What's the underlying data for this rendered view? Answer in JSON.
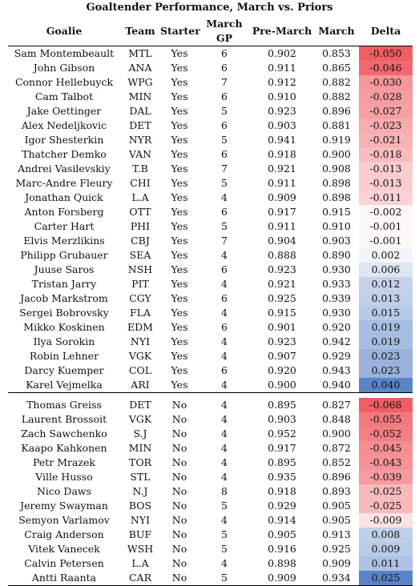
{
  "title": "Goaltender Performance, March vs. Priors",
  "headers": {
    "goalie": "Goalie",
    "team": "Team",
    "starter": "Starter",
    "march_gp": "March GP",
    "pre_march": "Pre-March",
    "march": "March",
    "delta": "Delta"
  },
  "starters": [
    {
      "goalie": "Sam Montembeault",
      "team": "MTL",
      "starter": "Yes",
      "gp": "6",
      "pre": "0.902",
      "march": "0.853",
      "delta": "-0.050",
      "d": -0.05
    },
    {
      "goalie": "John Gibson",
      "team": "ANA",
      "starter": "Yes",
      "gp": "6",
      "pre": "0.911",
      "march": "0.865",
      "delta": "-0.046",
      "d": -0.046
    },
    {
      "goalie": "Connor Hellebuyck",
      "team": "WPG",
      "starter": "Yes",
      "gp": "7",
      "pre": "0.912",
      "march": "0.882",
      "delta": "-0.030",
      "d": -0.03
    },
    {
      "goalie": "Cam Talbot",
      "team": "MIN",
      "starter": "Yes",
      "gp": "6",
      "pre": "0.910",
      "march": "0.882",
      "delta": "-0.028",
      "d": -0.028
    },
    {
      "goalie": "Jake Oettinger",
      "team": "DAL",
      "starter": "Yes",
      "gp": "5",
      "pre": "0.923",
      "march": "0.896",
      "delta": "-0.027",
      "d": -0.027
    },
    {
      "goalie": "Alex Nedeljkovic",
      "team": "DET",
      "starter": "Yes",
      "gp": "6",
      "pre": "0.903",
      "march": "0.881",
      "delta": "-0.023",
      "d": -0.023
    },
    {
      "goalie": "Igor Shesterkin",
      "team": "NYR",
      "starter": "Yes",
      "gp": "5",
      "pre": "0.941",
      "march": "0.919",
      "delta": "-0.021",
      "d": -0.021
    },
    {
      "goalie": "Thatcher Demko",
      "team": "VAN",
      "starter": "Yes",
      "gp": "6",
      "pre": "0.918",
      "march": "0.900",
      "delta": "-0.018",
      "d": -0.018
    },
    {
      "goalie": "Andrei Vasilevskiy",
      "team": "T.B",
      "starter": "Yes",
      "gp": "7",
      "pre": "0.921",
      "march": "0.908",
      "delta": "-0.013",
      "d": -0.013
    },
    {
      "goalie": "Marc-Andre Fleury",
      "team": "CHI",
      "starter": "Yes",
      "gp": "5",
      "pre": "0.911",
      "march": "0.898",
      "delta": "-0.013",
      "d": -0.013
    },
    {
      "goalie": "Jonathan Quick",
      "team": "L.A",
      "starter": "Yes",
      "gp": "4",
      "pre": "0.909",
      "march": "0.898",
      "delta": "-0.011",
      "d": -0.011
    },
    {
      "goalie": "Anton Forsberg",
      "team": "OTT",
      "starter": "Yes",
      "gp": "6",
      "pre": "0.917",
      "march": "0.915",
      "delta": "-0.002",
      "d": -0.002
    },
    {
      "goalie": "Carter Hart",
      "team": "PHI",
      "starter": "Yes",
      "gp": "5",
      "pre": "0.911",
      "march": "0.910",
      "delta": "-0.001",
      "d": -0.001
    },
    {
      "goalie": "Elvis Merzlikins",
      "team": "CBJ",
      "starter": "Yes",
      "gp": "7",
      "pre": "0.904",
      "march": "0.903",
      "delta": "-0.001",
      "d": -0.001
    },
    {
      "goalie": "Philipp Grubauer",
      "team": "SEA",
      "starter": "Yes",
      "gp": "4",
      "pre": "0.888",
      "march": "0.890",
      "delta": "0.002",
      "d": 0.002
    },
    {
      "goalie": "Juuse Saros",
      "team": "NSH",
      "starter": "Yes",
      "gp": "6",
      "pre": "0.923",
      "march": "0.930",
      "delta": "0.006",
      "d": 0.006
    },
    {
      "goalie": "Tristan Jarry",
      "team": "PIT",
      "starter": "Yes",
      "gp": "4",
      "pre": "0.921",
      "march": "0.933",
      "delta": "0.012",
      "d": 0.012
    },
    {
      "goalie": "Jacob Markstrom",
      "team": "CGY",
      "starter": "Yes",
      "gp": "6",
      "pre": "0.925",
      "march": "0.939",
      "delta": "0.013",
      "d": 0.013
    },
    {
      "goalie": "Sergei Bobrovsky",
      "team": "FLA",
      "starter": "Yes",
      "gp": "4",
      "pre": "0.915",
      "march": "0.930",
      "delta": "0.015",
      "d": 0.015
    },
    {
      "goalie": "Mikko Koskinen",
      "team": "EDM",
      "starter": "Yes",
      "gp": "6",
      "pre": "0.901",
      "march": "0.920",
      "delta": "0.019",
      "d": 0.019
    },
    {
      "goalie": "Ilya Sorokin",
      "team": "NYI",
      "starter": "Yes",
      "gp": "4",
      "pre": "0.923",
      "march": "0.942",
      "delta": "0.019",
      "d": 0.019
    },
    {
      "goalie": "Robin Lehner",
      "team": "VGK",
      "starter": "Yes",
      "gp": "4",
      "pre": "0.907",
      "march": "0.929",
      "delta": "0.023",
      "d": 0.023
    },
    {
      "goalie": "Darcy Kuemper",
      "team": "COL",
      "starter": "Yes",
      "gp": "6",
      "pre": "0.920",
      "march": "0.943",
      "delta": "0.023",
      "d": 0.023
    },
    {
      "goalie": "Karel Vejmelka",
      "team": "ARI",
      "starter": "Yes",
      "gp": "4",
      "pre": "0.900",
      "march": "0.940",
      "delta": "0.040",
      "d": 0.04
    }
  ],
  "backups": [
    {
      "goalie": "Thomas Greiss",
      "team": "DET",
      "starter": "No",
      "gp": "4",
      "pre": "0.895",
      "march": "0.827",
      "delta": "-0.068",
      "d": -0.068
    },
    {
      "goalie": "Laurent Brossoit",
      "team": "VGK",
      "starter": "No",
      "gp": "4",
      "pre": "0.903",
      "march": "0.848",
      "delta": "-0.055",
      "d": -0.055
    },
    {
      "goalie": "Zach Sawchenko",
      "team": "S.J",
      "starter": "No",
      "gp": "4",
      "pre": "0.952",
      "march": "0.900",
      "delta": "-0.052",
      "d": -0.052
    },
    {
      "goalie": "Kaapo Kahkonen",
      "team": "MIN",
      "starter": "No",
      "gp": "4",
      "pre": "0.917",
      "march": "0.872",
      "delta": "-0.045",
      "d": -0.045
    },
    {
      "goalie": "Petr Mrazek",
      "team": "TOR",
      "starter": "No",
      "gp": "4",
      "pre": "0.895",
      "march": "0.852",
      "delta": "-0.043",
      "d": -0.043
    },
    {
      "goalie": "Ville Husso",
      "team": "STL",
      "starter": "No",
      "gp": "4",
      "pre": "0.935",
      "march": "0.896",
      "delta": "-0.039",
      "d": -0.039
    },
    {
      "goalie": "Nico Daws",
      "team": "N.J",
      "starter": "No",
      "gp": "8",
      "pre": "0.918",
      "march": "0.893",
      "delta": "-0.025",
      "d": -0.025
    },
    {
      "goalie": "Jeremy Swayman",
      "team": "BOS",
      "starter": "No",
      "gp": "5",
      "pre": "0.929",
      "march": "0.905",
      "delta": "-0.025",
      "d": -0.025
    },
    {
      "goalie": "Semyon Varlamov",
      "team": "NYI",
      "starter": "No",
      "gp": "4",
      "pre": "0.914",
      "march": "0.905",
      "delta": "-0.009",
      "d": -0.009
    },
    {
      "goalie": "Craig Anderson",
      "team": "BUF",
      "starter": "No",
      "gp": "5",
      "pre": "0.905",
      "march": "0.913",
      "delta": "0.008",
      "d": 0.008
    },
    {
      "goalie": "Vitek Vanecek",
      "team": "WSH",
      "starter": "No",
      "gp": "5",
      "pre": "0.916",
      "march": "0.925",
      "delta": "0.009",
      "d": 0.009
    },
    {
      "goalie": "Calvin Petersen",
      "team": "L.A",
      "starter": "No",
      "gp": "4",
      "pre": "0.898",
      "march": "0.909",
      "delta": "0.011",
      "d": 0.011
    },
    {
      "goalie": "Antti Raanta",
      "team": "CAR",
      "starter": "No",
      "gp": "5",
      "pre": "0.909",
      "march": "0.934",
      "delta": "0.025",
      "d": 0.025
    }
  ],
  "colors": {
    "negative": "#f05e64",
    "positive": "#5a84c8",
    "neutral": "#ffffff"
  }
}
